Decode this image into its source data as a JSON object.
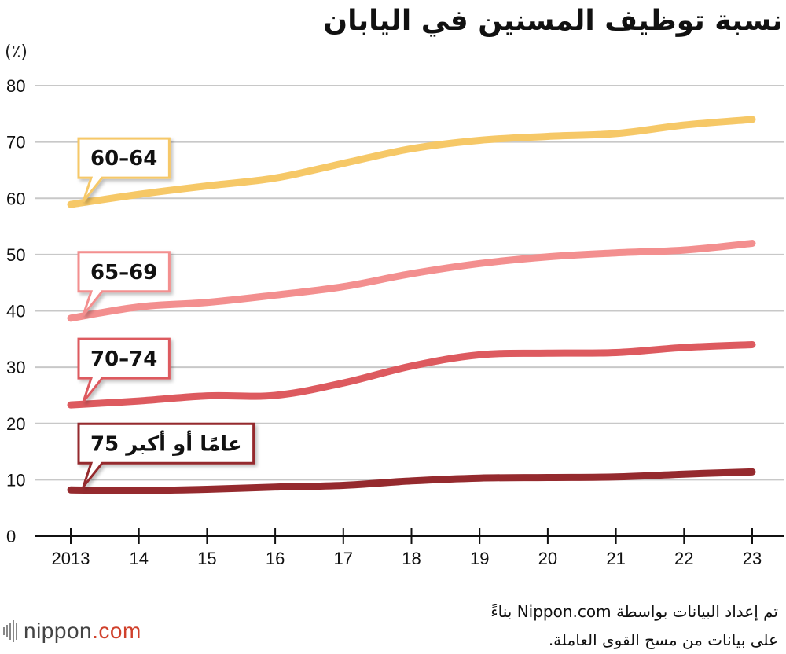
{
  "title": "نسبة توظيف المسنين في اليابان",
  "unit_label": "(٪)",
  "source": "تم إعداد البيانات بواسطة Nippon.com بناءً على بيانات من مسح القوى العاملة.",
  "logo": {
    "name": "nippon",
    "suffix": ".com"
  },
  "chart_data": {
    "type": "line",
    "x": [
      "2013",
      "14",
      "15",
      "16",
      "17",
      "18",
      "19",
      "20",
      "21",
      "22",
      "23"
    ],
    "ylim": [
      0,
      80
    ],
    "yticks": [
      0,
      10,
      20,
      30,
      40,
      50,
      60,
      70,
      80
    ],
    "grid": true,
    "series": [
      {
        "name": "60–64",
        "color": "#f6c867",
        "values": [
          58.9,
          60.7,
          62.2,
          63.6,
          66.2,
          68.8,
          70.3,
          71.0,
          71.5,
          73.0,
          74.0
        ]
      },
      {
        "name": "65–69",
        "color": "#f38f8f",
        "values": [
          38.7,
          40.7,
          41.5,
          42.8,
          44.3,
          46.6,
          48.4,
          49.6,
          50.3,
          50.8,
          52.0
        ]
      },
      {
        "name": "70–74",
        "color": "#dd5a5f",
        "values": [
          23.3,
          24.0,
          24.9,
          25.0,
          27.2,
          30.2,
          32.2,
          32.5,
          32.6,
          33.5,
          34.0
        ]
      },
      {
        "name": "75 عامًا أو أكبر",
        "color": "#952a2e",
        "values": [
          8.2,
          8.1,
          8.3,
          8.7,
          9.0,
          9.8,
          10.3,
          10.4,
          10.5,
          11.0,
          11.4
        ]
      }
    ]
  }
}
